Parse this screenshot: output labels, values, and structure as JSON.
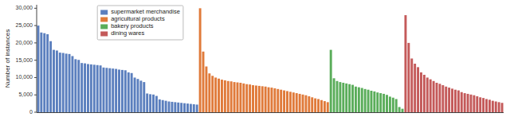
{
  "chart_data": {
    "type": "bar",
    "ylabel": "Number of instances",
    "categories": [
      null,
      null,
      null,
      null,
      null,
      null,
      null,
      null,
      null,
      null,
      null,
      null,
      null,
      null,
      null,
      null,
      null,
      null,
      null,
      null,
      null,
      null,
      null,
      null,
      null,
      null,
      null,
      null,
      null,
      null,
      null,
      null,
      null,
      null,
      null,
      null,
      null,
      null,
      null,
      null,
      null,
      null,
      null,
      null,
      null,
      null,
      null,
      null,
      null,
      null,
      null,
      null,
      null,
      null,
      null,
      null,
      null,
      null,
      null,
      null,
      null,
      null,
      null,
      null,
      null,
      null,
      null,
      null,
      null,
      null,
      null,
      null,
      null,
      null,
      null,
      null,
      null,
      null,
      null,
      null,
      null,
      null,
      null,
      null,
      null,
      null,
      null,
      null,
      null,
      null,
      null,
      null,
      null,
      null,
      null,
      null,
      null,
      null,
      null,
      null,
      null,
      null,
      null,
      null,
      null,
      null,
      null,
      null,
      null,
      null,
      null,
      null,
      null,
      null,
      null,
      null,
      null,
      null,
      null,
      null,
      null,
      null,
      null,
      null,
      null,
      null,
      null,
      null,
      null,
      null,
      null,
      null,
      null,
      null,
      null,
      null,
      null,
      null,
      null,
      null,
      null,
      null,
      null,
      null,
      null,
      null,
      null,
      null,
      null,
      null
    ],
    "series": [
      {
        "name": "supermarket merchandise",
        "color": "#5b7fbe",
        "values": [
          25000,
          23000,
          22800,
          22500,
          20500,
          18000,
          17800,
          17200,
          17100,
          16900,
          16800,
          16200,
          15300,
          15100,
          14200,
          14100,
          13900,
          13800,
          13700,
          13600,
          13500,
          12900,
          12800,
          12700,
          12600,
          12500,
          12300,
          12200,
          12100,
          11500,
          11300,
          10000,
          9600,
          9100,
          8700,
          5400,
          5200,
          5100,
          4700,
          3700,
          3500,
          3300,
          3100,
          3000,
          2900,
          2800,
          2700,
          2600,
          2500,
          2400,
          2300,
          2200,
          null,
          null,
          null,
          null,
          null,
          null,
          null,
          null,
          null,
          null,
          null,
          null,
          null,
          null,
          null,
          null,
          null,
          null,
          null,
          null,
          null,
          null,
          null,
          null,
          null,
          null,
          null,
          null,
          null,
          null,
          null,
          null,
          null,
          null,
          null,
          null,
          null,
          null,
          null,
          null,
          null,
          null,
          null,
          null,
          null,
          null,
          null,
          null,
          null,
          null,
          null,
          null,
          null,
          null,
          null,
          null,
          null,
          null,
          null,
          null,
          null,
          null,
          null,
          null,
          null,
          null,
          null,
          null,
          null,
          null,
          null,
          null,
          null,
          null,
          null,
          null,
          null,
          null,
          null,
          null,
          null,
          null,
          null,
          null,
          null,
          null,
          null,
          null,
          null,
          null,
          null,
          null,
          null,
          null,
          null,
          null,
          null,
          null
        ]
      },
      {
        "name": "agricultural products",
        "color": "#e07a3a",
        "values": [
          null,
          null,
          null,
          null,
          null,
          null,
          null,
          null,
          null,
          null,
          null,
          null,
          null,
          null,
          null,
          null,
          null,
          null,
          null,
          null,
          null,
          null,
          null,
          null,
          null,
          null,
          null,
          null,
          null,
          null,
          null,
          null,
          null,
          null,
          null,
          null,
          null,
          null,
          null,
          null,
          null,
          null,
          null,
          null,
          null,
          null,
          null,
          null,
          null,
          null,
          null,
          null,
          30000,
          17500,
          13200,
          11200,
          10500,
          10000,
          9700,
          9400,
          9200,
          9000,
          8900,
          8700,
          8600,
          8500,
          8300,
          8100,
          8000,
          7800,
          7700,
          7600,
          7500,
          7400,
          7200,
          7100,
          6900,
          6700,
          6500,
          6300,
          6100,
          5900,
          5700,
          5500,
          5300,
          5100,
          4900,
          4600,
          4300,
          4000,
          3800,
          3500,
          3200,
          2900,
          null,
          null,
          null,
          null,
          null,
          null,
          null,
          null,
          null,
          null,
          null,
          null,
          null,
          null,
          null,
          null,
          null,
          null,
          null,
          null,
          null,
          null,
          null,
          null,
          null,
          null,
          null,
          null,
          null,
          null,
          null,
          null,
          null,
          null,
          null,
          null,
          null,
          null,
          null,
          null,
          null,
          null,
          null,
          null,
          null,
          null,
          null,
          null,
          null,
          null,
          null,
          null,
          null,
          null,
          null,
          null
        ]
      },
      {
        "name": "bakery products",
        "color": "#5aad5a",
        "values": [
          null,
          null,
          null,
          null,
          null,
          null,
          null,
          null,
          null,
          null,
          null,
          null,
          null,
          null,
          null,
          null,
          null,
          null,
          null,
          null,
          null,
          null,
          null,
          null,
          null,
          null,
          null,
          null,
          null,
          null,
          null,
          null,
          null,
          null,
          null,
          null,
          null,
          null,
          null,
          null,
          null,
          null,
          null,
          null,
          null,
          null,
          null,
          null,
          null,
          null,
          null,
          null,
          null,
          null,
          null,
          null,
          null,
          null,
          null,
          null,
          null,
          null,
          null,
          null,
          null,
          null,
          null,
          null,
          null,
          null,
          null,
          null,
          null,
          null,
          null,
          null,
          null,
          null,
          null,
          null,
          null,
          null,
          null,
          null,
          null,
          null,
          null,
          null,
          null,
          null,
          null,
          null,
          null,
          null,
          18000,
          9800,
          9000,
          8700,
          8500,
          8300,
          8100,
          7900,
          7400,
          7200,
          7000,
          6700,
          6500,
          6200,
          6000,
          5700,
          5500,
          5300,
          5000,
          4500,
          4200,
          3800,
          1500,
          1000,
          null,
          null,
          null,
          null,
          null,
          null,
          null,
          null,
          null,
          null,
          null,
          null,
          null,
          null,
          null,
          null,
          null,
          null,
          null,
          null,
          null,
          null,
          null,
          null,
          null,
          null,
          null,
          null,
          null,
          null,
          null,
          null
        ]
      },
      {
        "name": "dining wares",
        "color": "#c45a5a",
        "values": [
          null,
          null,
          null,
          null,
          null,
          null,
          null,
          null,
          null,
          null,
          null,
          null,
          null,
          null,
          null,
          null,
          null,
          null,
          null,
          null,
          null,
          null,
          null,
          null,
          null,
          null,
          null,
          null,
          null,
          null,
          null,
          null,
          null,
          null,
          null,
          null,
          null,
          null,
          null,
          null,
          null,
          null,
          null,
          null,
          null,
          null,
          null,
          null,
          null,
          null,
          null,
          null,
          null,
          null,
          null,
          null,
          null,
          null,
          null,
          null,
          null,
          null,
          null,
          null,
          null,
          null,
          null,
          null,
          null,
          null,
          null,
          null,
          null,
          null,
          null,
          null,
          null,
          null,
          null,
          null,
          null,
          null,
          null,
          null,
          null,
          null,
          null,
          null,
          null,
          null,
          null,
          null,
          null,
          null,
          null,
          null,
          null,
          null,
          null,
          null,
          null,
          null,
          null,
          null,
          null,
          null,
          null,
          null,
          null,
          null,
          null,
          null,
          null,
          null,
          null,
          null,
          null,
          null,
          28000,
          20000,
          15500,
          14000,
          13000,
          11500,
          10800,
          10000,
          9500,
          9000,
          8500,
          8200,
          7800,
          7400,
          7100,
          6800,
          6500,
          6300,
          5800,
          5500,
          5300,
          5100,
          4900,
          4600,
          4300,
          4100,
          3800,
          3600,
          3300,
          3100,
          2900,
          2700
        ]
      }
    ],
    "ylim": [
      0,
      31000
    ],
    "yticks": [
      0,
      {
        "value": 5000,
        "label": "5,000"
      },
      {
        "value": 10000,
        "label": "10,000"
      },
      {
        "value": 15000,
        "label": "15,000"
      },
      {
        "value": 20000,
        "label": "20,000"
      },
      {
        "value": 25000,
        "label": "25,000"
      },
      {
        "value": 30000,
        "label": "30,000"
      }
    ],
    "legend": "upper left",
    "grid": false,
    "tick_labels": "y"
  }
}
